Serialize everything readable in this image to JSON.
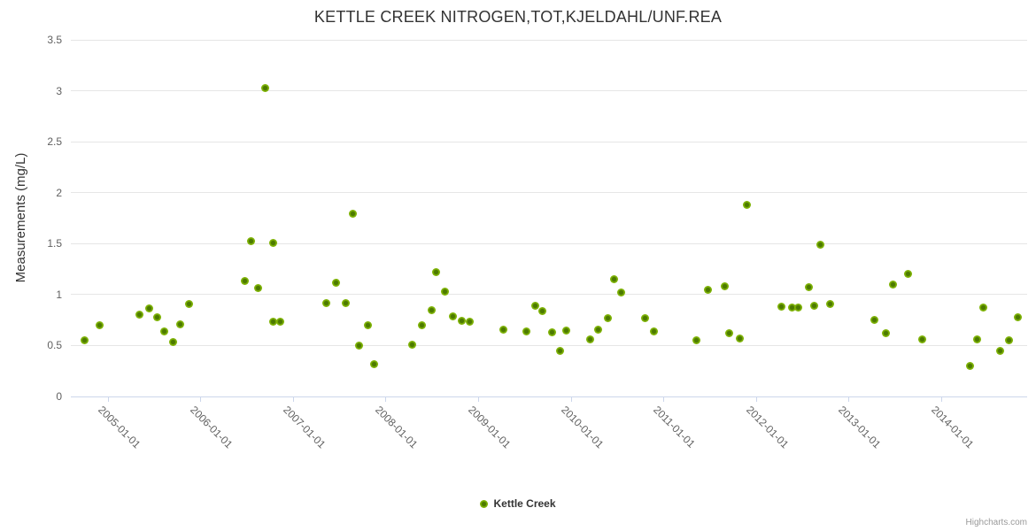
{
  "credits": "Highcharts.com",
  "colors": {
    "marker_fill": "#7fb306",
    "marker_center": "#4c7a00",
    "title_text": "#333333",
    "axis_label_text": "#606060",
    "gridline": "#e6e6e6",
    "axis_line": "#ccd6eb",
    "background": "#ffffff",
    "credits_text": "#999999"
  },
  "chart_data": {
    "type": "scatter",
    "title": "KETTLE CREEK NITROGEN,TOT,KJELDAHL/UNF.REA",
    "xlabel": "",
    "ylabel": "Measurements (mg/L)",
    "xlim": [
      2004.6,
      2014.93
    ],
    "ylim": [
      0,
      3.5
    ],
    "grid": "horizontal-only",
    "legend_position": "bottom-center",
    "y_ticks": [
      0,
      0.5,
      1,
      1.5,
      2,
      2.5,
      3,
      3.5
    ],
    "y_tick_labels": [
      "0",
      "0.5",
      "1",
      "1.5",
      "2",
      "2.5",
      "3",
      "3.5"
    ],
    "x_ticks": [
      2005,
      2006,
      2007,
      2008,
      2009,
      2010,
      2011,
      2012,
      2013,
      2014
    ],
    "x_tick_labels": [
      "2005-01-01",
      "2006-01-01",
      "2007-01-01",
      "2008-01-01",
      "2009-01-01",
      "2010-01-01",
      "2011-01-01",
      "2012-01-01",
      "2013-01-01",
      "2014-01-01"
    ],
    "series": [
      {
        "name": "Kettle Creek",
        "points": [
          [
            2004.75,
            0.55
          ],
          [
            2004.91,
            0.7
          ],
          [
            2005.34,
            0.8
          ],
          [
            2005.45,
            0.86
          ],
          [
            2005.53,
            0.78
          ],
          [
            2005.61,
            0.64
          ],
          [
            2005.7,
            0.53
          ],
          [
            2005.78,
            0.71
          ],
          [
            2005.88,
            0.91
          ],
          [
            2006.48,
            1.13
          ],
          [
            2006.55,
            1.52
          ],
          [
            2006.62,
            1.06
          ],
          [
            2006.7,
            3.03
          ],
          [
            2006.79,
            1.51
          ],
          [
            2006.79,
            0.73
          ],
          [
            2006.86,
            0.73
          ],
          [
            2007.36,
            0.92
          ],
          [
            2007.46,
            1.12
          ],
          [
            2007.57,
            0.92
          ],
          [
            2007.65,
            1.79
          ],
          [
            2007.71,
            0.5
          ],
          [
            2007.81,
            0.7
          ],
          [
            2007.88,
            0.32
          ],
          [
            2008.29,
            0.51
          ],
          [
            2008.39,
            0.7
          ],
          [
            2008.5,
            0.85
          ],
          [
            2008.55,
            1.22
          ],
          [
            2008.64,
            1.03
          ],
          [
            2008.73,
            0.79
          ],
          [
            2008.82,
            0.74
          ],
          [
            2008.91,
            0.73
          ],
          [
            2009.27,
            0.66
          ],
          [
            2009.52,
            0.64
          ],
          [
            2009.62,
            0.89
          ],
          [
            2009.69,
            0.84
          ],
          [
            2009.8,
            0.63
          ],
          [
            2009.88,
            0.45
          ],
          [
            2009.95,
            0.65
          ],
          [
            2010.21,
            0.56
          ],
          [
            2010.3,
            0.66
          ],
          [
            2010.4,
            0.77
          ],
          [
            2010.47,
            1.15
          ],
          [
            2010.54,
            1.02
          ],
          [
            2010.8,
            0.77
          ],
          [
            2010.9,
            0.64
          ],
          [
            2011.36,
            0.55
          ],
          [
            2011.48,
            1.05
          ],
          [
            2011.66,
            1.08
          ],
          [
            2011.71,
            0.62
          ],
          [
            2011.83,
            0.57
          ],
          [
            2011.9,
            1.88
          ],
          [
            2012.28,
            0.88
          ],
          [
            2012.39,
            0.87
          ],
          [
            2012.46,
            0.87
          ],
          [
            2012.57,
            1.07
          ],
          [
            2012.63,
            0.89
          ],
          [
            2012.7,
            1.49
          ],
          [
            2012.8,
            0.91
          ],
          [
            2013.28,
            0.75
          ],
          [
            2013.4,
            0.62
          ],
          [
            2013.48,
            1.1
          ],
          [
            2013.64,
            1.2
          ],
          [
            2013.8,
            0.56
          ],
          [
            2014.31,
            0.3
          ],
          [
            2014.39,
            0.56
          ],
          [
            2014.46,
            0.87
          ],
          [
            2014.64,
            0.45
          ],
          [
            2014.73,
            0.55
          ],
          [
            2014.83,
            0.78
          ]
        ]
      }
    ]
  }
}
